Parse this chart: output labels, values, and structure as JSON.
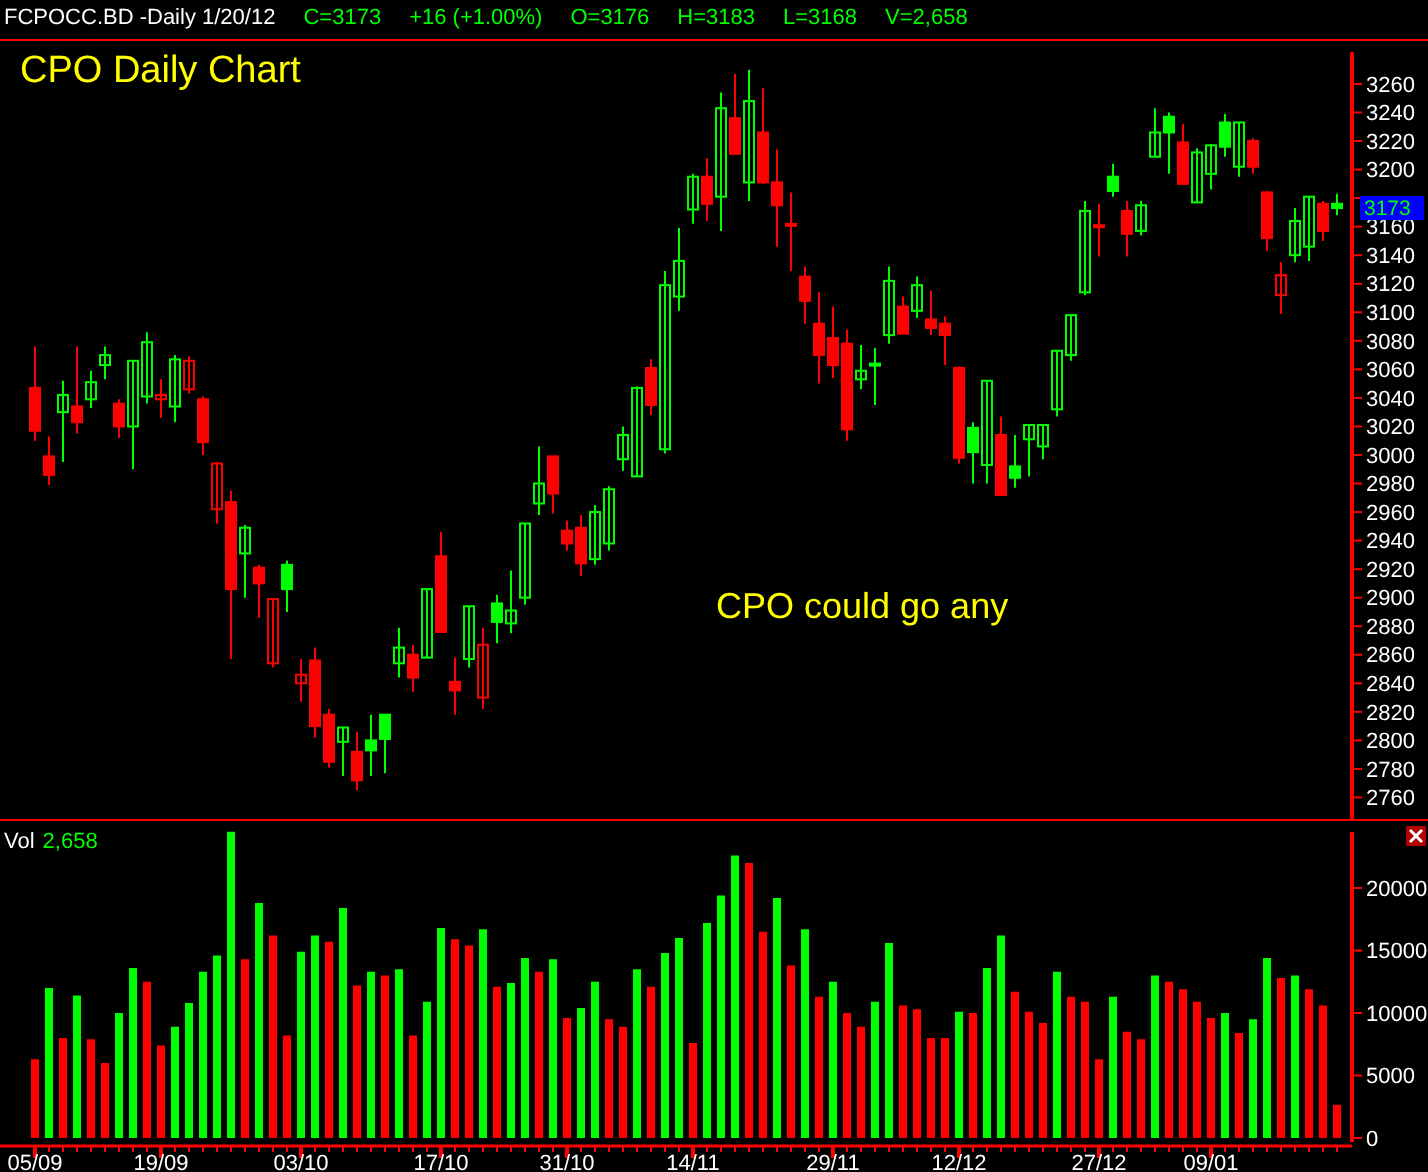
{
  "chart_data": [
    {
      "type": "candlestick",
      "title": "CPO Daily Chart",
      "subtitle": "FCPOCC.BD -Daily  1/20/12",
      "annotations": [
        "C=3173",
        "+16 (+1.00%)",
        "O=3176",
        "H=3183",
        "L=3168",
        "V=2,658",
        "CPO could go any",
        "3173"
      ],
      "categories": [
        null,
        null,
        null,
        null,
        null,
        null,
        null,
        null,
        null,
        null,
        null,
        null,
        null,
        null,
        null,
        null,
        null,
        null,
        null,
        null,
        null,
        null,
        null,
        null,
        null,
        null,
        null,
        null,
        null,
        null,
        null,
        null,
        null,
        null,
        null,
        null,
        null,
        null,
        null,
        null,
        null,
        null,
        null,
        null,
        null,
        null,
        null,
        null,
        null,
        null,
        null,
        null,
        null,
        null,
        null,
        null,
        null,
        null,
        null,
        null,
        null,
        null,
        null,
        null,
        null,
        null,
        null,
        null,
        null,
        null,
        null,
        null,
        null,
        null,
        null,
        null,
        null,
        null,
        null,
        null,
        null,
        null,
        null,
        null,
        null,
        null,
        null,
        null,
        null,
        null,
        null,
        null,
        null,
        null
      ],
      "ohlc": [
        [
          3047,
          3076,
          3010,
          3017
        ],
        [
          2999,
          3013,
          2979,
          2986
        ],
        [
          3030,
          3052,
          2995,
          3042
        ],
        [
          3034,
          3076,
          3015,
          3023
        ],
        [
          3039,
          3059,
          3033,
          3051
        ],
        [
          3063,
          3076,
          3053,
          3070
        ],
        [
          3036,
          3039,
          3012,
          3020
        ],
        [
          3020,
          3066,
          2990,
          3066
        ],
        [
          3041,
          3086,
          3036,
          3079
        ],
        [
          3039,
          3053,
          3026,
          3042
        ],
        [
          3034,
          3070,
          3023,
          3067
        ],
        [
          3046,
          3069,
          3043,
          3066
        ],
        [
          3039,
          3041,
          3000,
          3009
        ],
        [
          2962,
          2995,
          2952,
          2994
        ],
        [
          2967,
          2975,
          2857,
          2906
        ],
        [
          2931,
          2951,
          2900,
          2949
        ],
        [
          2921,
          2923,
          2886,
          2910
        ],
        [
          2854,
          2899,
          2851,
          2899
        ],
        [
          2923,
          2926,
          2890,
          2906
        ],
        [
          2840,
          2857,
          2827,
          2846
        ],
        [
          2856,
          2865,
          2802,
          2810
        ],
        [
          2818,
          2822,
          2781,
          2785
        ],
        [
          2799,
          2809,
          2775,
          2809
        ],
        [
          2792,
          2806,
          2765,
          2772
        ],
        [
          2800,
          2818,
          2775,
          2793
        ],
        [
          2818,
          2818,
          2777,
          2801
        ],
        [
          2854,
          2879,
          2844,
          2865
        ],
        [
          2860,
          2867,
          2834,
          2844
        ],
        [
          2858,
          2906,
          2858,
          2906
        ],
        [
          2929,
          2946,
          2876,
          2876
        ],
        [
          2841,
          2858,
          2818,
          2835
        ],
        [
          2857,
          2894,
          2851,
          2894
        ],
        [
          2830,
          2879,
          2822,
          2867
        ],
        [
          2896,
          2902,
          2868,
          2883
        ],
        [
          2882,
          2919,
          2875,
          2891
        ],
        [
          2900,
          2952,
          2895,
          2952
        ],
        [
          2966,
          3006,
          2958,
          2980
        ],
        [
          2999,
          2999,
          2959,
          2973
        ],
        [
          2947,
          2954,
          2933,
          2938
        ],
        [
          2949,
          2958,
          2915,
          2924
        ],
        [
          2927,
          2965,
          2923,
          2960
        ],
        [
          2938,
          2978,
          2933,
          2976
        ],
        [
          2997,
          3020,
          2989,
          3014
        ],
        [
          2985,
          3048,
          2985,
          3047
        ],
        [
          3061,
          3067,
          3028,
          3035
        ],
        [
          3004,
          3129,
          3001,
          3119
        ],
        [
          3111,
          3159,
          3101,
          3136
        ],
        [
          3172,
          3197,
          3162,
          3195
        ],
        [
          3195,
          3208,
          3164,
          3176
        ],
        [
          3181,
          3254,
          3157,
          3243
        ],
        [
          3236,
          3267,
          3211,
          3211
        ],
        [
          3191,
          3270,
          3178,
          3248
        ],
        [
          3226,
          3257,
          3190,
          3191
        ],
        [
          3191,
          3214,
          3146,
          3175
        ],
        [
          3162,
          3184,
          3129,
          3161
        ],
        [
          3125,
          3132,
          3092,
          3108
        ],
        [
          3092,
          3114,
          3050,
          3070
        ],
        [
          3082,
          3104,
          3054,
          3063
        ],
        [
          3078,
          3088,
          3010,
          3018
        ],
        [
          3053,
          3077,
          3046,
          3059
        ],
        [
          3063,
          3075,
          3035,
          3064
        ],
        [
          3084,
          3132,
          3078,
          3122
        ],
        [
          3104,
          3111,
          3085,
          3085
        ],
        [
          3101,
          3125,
          3096,
          3119
        ],
        [
          3095,
          3115,
          3084,
          3089
        ],
        [
          3092,
          3097,
          3063,
          3084
        ],
        [
          3061,
          3062,
          2994,
          2998
        ],
        [
          3019,
          3023,
          2980,
          3002
        ],
        [
          2993,
          3052,
          2980,
          3052
        ],
        [
          3014,
          3027,
          2972,
          2972
        ],
        [
          2992,
          3014,
          2977,
          2984
        ],
        [
          3011,
          3021,
          2985,
          3021
        ],
        [
          3006,
          3021,
          2997,
          3021
        ],
        [
          3032,
          3073,
          3027,
          3073
        ],
        [
          3070,
          3098,
          3066,
          3098
        ],
        [
          3114,
          3178,
          3112,
          3171
        ],
        [
          3161,
          3176,
          3139,
          3160
        ],
        [
          3195,
          3204,
          3181,
          3185
        ],
        [
          3171,
          3178,
          3139,
          3155
        ],
        [
          3157,
          3178,
          3154,
          3175
        ],
        [
          3209,
          3243,
          3209,
          3226
        ],
        [
          3237,
          3240,
          3197,
          3226
        ],
        [
          3219,
          3232,
          3190,
          3190
        ],
        [
          3177,
          3215,
          3177,
          3212
        ],
        [
          3197,
          3218,
          3186,
          3217
        ],
        [
          3233,
          3239,
          3209,
          3216
        ],
        [
          3202,
          3233,
          3195,
          3233
        ],
        [
          3220,
          3222,
          3197,
          3202
        ],
        [
          3184,
          3185,
          3143,
          3152
        ],
        [
          3112,
          3135,
          3099,
          3126
        ],
        [
          3140,
          3173,
          3135,
          3164
        ],
        [
          3146,
          3181,
          3136,
          3181
        ],
        [
          3176,
          3178,
          3150,
          3157
        ],
        [
          3176,
          3183,
          3168,
          3173
        ]
      ],
      "colors": [
        "#ff0000",
        "#ff0000",
        "#00ff00",
        "#ff0000",
        "#00ff00",
        "#00ff00",
        "#ff0000",
        "#00ff00",
        "#00ff00",
        "#ff0000",
        "#00ff00",
        "#ff0000",
        "#ff0000",
        "#ff0000",
        "#ff0000",
        "#00ff00",
        "#ff0000",
        "#ff0000",
        "#00ff00",
        "#ff0000",
        "#ff0000",
        "#ff0000",
        "#00ff00",
        "#ff0000",
        "#00ff00",
        "#00ff00",
        "#00ff00",
        "#ff0000",
        "#00ff00",
        "#ff0000",
        "#ff0000",
        "#00ff00",
        "#ff0000",
        "#00ff00",
        "#00ff00",
        "#00ff00",
        "#00ff00",
        "#ff0000",
        "#ff0000",
        "#ff0000",
        "#00ff00",
        "#00ff00",
        "#00ff00",
        "#00ff00",
        "#ff0000",
        "#00ff00",
        "#00ff00",
        "#00ff00",
        "#ff0000",
        "#00ff00",
        "#ff0000",
        "#00ff00",
        "#ff0000",
        "#ff0000",
        "#ff0000",
        "#ff0000",
        "#ff0000",
        "#ff0000",
        "#ff0000",
        "#00ff00",
        "#00ff00",
        "#00ff00",
        "#ff0000",
        "#00ff00",
        "#ff0000",
        "#ff0000",
        "#ff0000",
        "#00ff00",
        "#00ff00",
        "#ff0000",
        "#00ff00",
        "#00ff00",
        "#00ff00",
        "#00ff00",
        "#00ff00",
        "#00ff00",
        "#ff0000",
        "#00ff00",
        "#ff0000",
        "#00ff00",
        "#00ff00",
        "#00ff00",
        "#ff0000",
        "#00ff00",
        "#00ff00",
        "#00ff00",
        "#00ff00",
        "#ff0000",
        "#ff0000",
        "#ff0000",
        "#00ff00",
        "#00ff00",
        "#ff0000",
        "#00ff00"
      ],
      "ylim": [
        2747,
        3288
      ],
      "yticks": [
        2760,
        2780,
        2800,
        2820,
        2840,
        2860,
        2880,
        2900,
        2920,
        2940,
        2960,
        2980,
        3000,
        3020,
        3040,
        3060,
        3080,
        3100,
        3120,
        3140,
        3160,
        {
          "value": 3180,
          "label": null
        },
        3200,
        3220,
        3240,
        3260
      ],
      "tick_labels": "y"
    },
    {
      "type": "bar",
      "title": "Vol",
      "annotations": [
        "2,658"
      ],
      "categories": [
        "05/09",
        null,
        null,
        null,
        null,
        null,
        null,
        null,
        null,
        "19/09",
        null,
        null,
        null,
        null,
        null,
        null,
        null,
        null,
        null,
        "03/10",
        null,
        null,
        null,
        null,
        null,
        null,
        null,
        null,
        null,
        "17/10",
        null,
        null,
        null,
        null,
        null,
        null,
        null,
        null,
        "31/10",
        null,
        null,
        null,
        null,
        null,
        null,
        null,
        null,
        "14/11",
        null,
        null,
        null,
        null,
        null,
        null,
        null,
        null,
        null,
        "29/11",
        null,
        null,
        null,
        null,
        null,
        null,
        null,
        null,
        "12/12",
        null,
        null,
        null,
        null,
        null,
        null,
        null,
        null,
        null,
        "27/12",
        null,
        null,
        null,
        null,
        null,
        null,
        null,
        "09/01",
        null,
        null,
        null,
        null,
        null,
        null,
        null,
        null,
        null
      ],
      "values": [
        6300,
        12000,
        8000,
        11400,
        7900,
        6000,
        10000,
        13600,
        12500,
        7400,
        8900,
        10800,
        13300,
        14600,
        24500,
        14300,
        18800,
        16200,
        8200,
        14900,
        16200,
        15700,
        18400,
        12200,
        13300,
        13000,
        13500,
        8200,
        10900,
        16800,
        15900,
        15400,
        16700,
        12100,
        12400,
        14400,
        13300,
        14300,
        9600,
        10400,
        12500,
        9500,
        8900,
        13500,
        12100,
        14800,
        16000,
        7600,
        17200,
        19400,
        22600,
        22000,
        16500,
        19200,
        13800,
        16700,
        11300,
        12500,
        10000,
        8900,
        10900,
        15600,
        10600,
        10300,
        8000,
        8000,
        10100,
        10000,
        13600,
        16200,
        11700,
        10100,
        9200,
        13300,
        11300,
        10900,
        6300,
        11300,
        8500,
        7900,
        13000,
        12500,
        11900,
        10900,
        9600,
        10000,
        8400,
        9500,
        14400,
        12800,
        13000,
        11900,
        10600,
        2658
      ],
      "colors": [
        "#ff0000",
        "#00ff00",
        "#ff0000",
        "#00ff00",
        "#ff0000",
        "#ff0000",
        "#00ff00",
        "#00ff00",
        "#ff0000",
        "#ff0000",
        "#00ff00",
        "#00ff00",
        "#00ff00",
        "#00ff00",
        "#00ff00",
        "#ff0000",
        "#00ff00",
        "#ff0000",
        "#ff0000",
        "#00ff00",
        "#00ff00",
        "#ff0000",
        "#00ff00",
        "#ff0000",
        "#00ff00",
        "#ff0000",
        "#00ff00",
        "#ff0000",
        "#00ff00",
        "#00ff00",
        "#ff0000",
        "#ff0000",
        "#00ff00",
        "#ff0000",
        "#00ff00",
        "#00ff00",
        "#ff0000",
        "#00ff00",
        "#ff0000",
        "#00ff00",
        "#00ff00",
        "#ff0000",
        "#ff0000",
        "#00ff00",
        "#ff0000",
        "#00ff00",
        "#00ff00",
        "#ff0000",
        "#00ff00",
        "#00ff00",
        "#00ff00",
        "#ff0000",
        "#ff0000",
        "#00ff00",
        "#ff0000",
        "#00ff00",
        "#ff0000",
        "#00ff00",
        "#ff0000",
        "#ff0000",
        "#00ff00",
        "#00ff00",
        "#ff0000",
        "#ff0000",
        "#ff0000",
        "#ff0000",
        "#00ff00",
        "#ff0000",
        "#00ff00",
        "#00ff00",
        "#ff0000",
        "#ff0000",
        "#ff0000",
        "#00ff00",
        "#ff0000",
        "#ff0000",
        "#ff0000",
        "#00ff00",
        "#ff0000",
        "#ff0000",
        "#00ff00",
        "#ff0000",
        "#ff0000",
        "#ff0000",
        "#ff0000",
        "#00ff00",
        "#ff0000",
        "#00ff00",
        "#00ff00",
        "#ff0000",
        "#00ff00",
        "#ff0000",
        "#ff0000",
        "#ff0000"
      ],
      "ylim": [
        0,
        25120
      ],
      "yticks": [
        0,
        5000,
        10000,
        15000,
        20000
      ]
    }
  ]
}
